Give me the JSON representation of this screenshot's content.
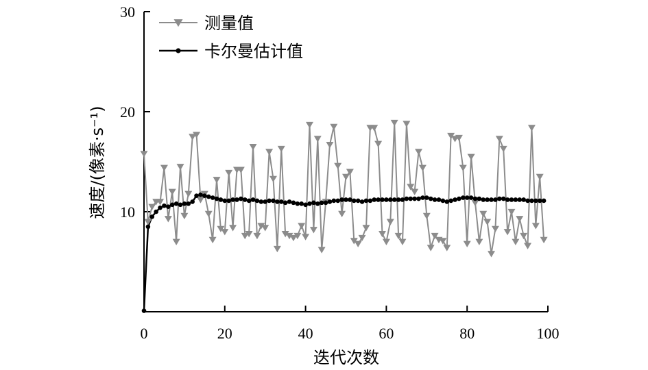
{
  "chart_data": {
    "type": "line",
    "title": "",
    "xlabel": "迭代次数",
    "ylabel": "速度/(像素·s⁻¹)",
    "xlim": [
      0,
      100
    ],
    "ylim": [
      0,
      30
    ],
    "x_ticks": [
      "0",
      "20",
      "40",
      "60",
      "80",
      "100"
    ],
    "y_ticks": [
      "10",
      "20",
      "30"
    ],
    "grid": false,
    "legend_position": "top-left",
    "series": [
      {
        "name": "测量值",
        "color": "#8c8c8c",
        "marker": "triangle-down",
        "x": [
          0,
          1,
          2,
          3,
          4,
          5,
          6,
          7,
          8,
          9,
          10,
          11,
          12,
          13,
          14,
          15,
          16,
          17,
          18,
          19,
          20,
          21,
          22,
          23,
          24,
          25,
          26,
          27,
          28,
          29,
          30,
          31,
          32,
          33,
          34,
          35,
          36,
          37,
          38,
          39,
          40,
          41,
          42,
          43,
          44,
          45,
          46,
          47,
          48,
          49,
          50,
          51,
          52,
          53,
          54,
          55,
          56,
          57,
          58,
          59,
          60,
          61,
          62,
          63,
          64,
          65,
          66,
          67,
          68,
          69,
          70,
          71,
          72,
          73,
          74,
          75,
          76,
          77,
          78,
          79,
          80,
          81,
          82,
          83,
          84,
          85,
          86,
          87,
          88,
          89,
          90,
          91,
          92,
          93,
          94,
          95,
          96,
          97,
          98,
          99
        ],
        "values": [
          15.8,
          9.0,
          10.5,
          11.0,
          11.0,
          14.4,
          9.3,
          12.0,
          7.0,
          14.5,
          9.6,
          11.8,
          17.5,
          17.7,
          11.2,
          11.8,
          9.8,
          7.2,
          13.2,
          8.3,
          8.0,
          13.9,
          8.4,
          14.2,
          14.2,
          7.6,
          7.8,
          16.5,
          7.6,
          8.6,
          8.4,
          16.0,
          13.3,
          6.3,
          16.3,
          7.8,
          7.6,
          7.4,
          7.6,
          8.6,
          7.5,
          18.7,
          8.2,
          17.3,
          6.2,
          11.0,
          16.7,
          18.5,
          14.6,
          9.8,
          13.5,
          14.0,
          7.1,
          6.8,
          7.4,
          8.4,
          18.4,
          18.4,
          16.8,
          7.8,
          7.0,
          9.0,
          18.9,
          7.6,
          7.0,
          18.8,
          12.5,
          12.0,
          16.0,
          14.4,
          9.6,
          6.4,
          7.6,
          7.2,
          7.1,
          6.4,
          17.6,
          17.3,
          17.4,
          14.4,
          6.8,
          15.5,
          10.9,
          7.0,
          9.8,
          9.0,
          5.8,
          8.3,
          17.3,
          16.3,
          8.0,
          10.0,
          7.0,
          9.3,
          7.6,
          6.6,
          18.4,
          8.6,
          13.5,
          7.2
        ]
      },
      {
        "name": "卡尔曼估计值",
        "color": "#000000",
        "marker": "circle",
        "x": [
          0,
          1,
          2,
          3,
          4,
          5,
          6,
          7,
          8,
          9,
          10,
          11,
          12,
          13,
          14,
          15,
          16,
          17,
          18,
          19,
          20,
          21,
          22,
          23,
          24,
          25,
          26,
          27,
          28,
          29,
          30,
          31,
          32,
          33,
          34,
          35,
          36,
          37,
          38,
          39,
          40,
          41,
          42,
          43,
          44,
          45,
          46,
          47,
          48,
          49,
          50,
          51,
          52,
          53,
          54,
          55,
          56,
          57,
          58,
          59,
          60,
          61,
          62,
          63,
          64,
          65,
          66,
          67,
          68,
          69,
          70,
          71,
          72,
          73,
          74,
          75,
          76,
          77,
          78,
          79,
          80,
          81,
          82,
          83,
          84,
          85,
          86,
          87,
          88,
          89,
          90,
          91,
          92,
          93,
          94,
          95,
          96,
          97,
          98,
          99
        ],
        "values": [
          0.1,
          8.5,
          9.5,
          10.0,
          10.4,
          10.6,
          10.5,
          10.7,
          10.8,
          10.7,
          10.8,
          10.8,
          11.0,
          11.6,
          11.7,
          11.6,
          11.5,
          11.4,
          11.3,
          11.2,
          11.1,
          11.1,
          11.2,
          11.2,
          11.3,
          11.2,
          11.1,
          11.2,
          11.1,
          11.0,
          11.0,
          11.1,
          11.1,
          11.0,
          11.0,
          10.9,
          11.0,
          10.9,
          10.8,
          10.8,
          10.7,
          10.8,
          10.9,
          10.8,
          10.9,
          10.9,
          11.0,
          11.1,
          11.1,
          11.2,
          11.2,
          11.2,
          11.1,
          11.1,
          11.0,
          11.1,
          11.1,
          11.2,
          11.2,
          11.2,
          11.2,
          11.2,
          11.2,
          11.2,
          11.2,
          11.3,
          11.3,
          11.3,
          11.3,
          11.4,
          11.4,
          11.3,
          11.2,
          11.2,
          11.1,
          11.0,
          11.1,
          11.2,
          11.3,
          11.4,
          11.4,
          11.4,
          11.3,
          11.3,
          11.2,
          11.2,
          11.2,
          11.2,
          11.3,
          11.3,
          11.2,
          11.2,
          11.2,
          11.2,
          11.2,
          11.1,
          11.1,
          11.1,
          11.1,
          11.1
        ]
      }
    ]
  }
}
